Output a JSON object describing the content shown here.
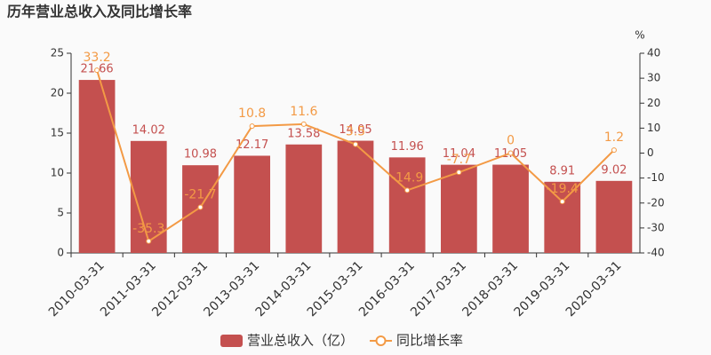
{
  "chart_data": {
    "type": "bar_line",
    "title": "历年营业总收入及同比增长率",
    "y2_label": "%",
    "categories": [
      "2010-03-31",
      "2011-03-31",
      "2012-03-31",
      "2013-03-31",
      "2014-03-31",
      "2015-03-31",
      "2016-03-31",
      "2017-03-31",
      "2018-03-31",
      "2019-03-31",
      "2020-03-31"
    ],
    "series": [
      {
        "name": "营业总收入（亿）",
        "type": "bar",
        "color": "#c4504f",
        "values": [
          21.66,
          14.02,
          10.98,
          12.17,
          13.58,
          14.05,
          11.96,
          11.04,
          11.05,
          8.91,
          9.02
        ]
      },
      {
        "name": "同比增长率",
        "type": "line",
        "axis": "y2",
        "color": "#f39a45",
        "values": [
          33.2,
          -35.3,
          -21.7,
          10.8,
          11.6,
          3.5,
          -14.9,
          -7.7,
          0,
          -19.4,
          1.2
        ]
      }
    ],
    "ylim": [
      0,
      25
    ],
    "yticks": [
      0,
      5,
      10,
      15,
      20,
      25
    ],
    "y2lim": [
      -40,
      40
    ],
    "y2ticks": [
      -40,
      -30,
      -20,
      -10,
      0,
      10,
      20,
      30,
      40
    ]
  }
}
